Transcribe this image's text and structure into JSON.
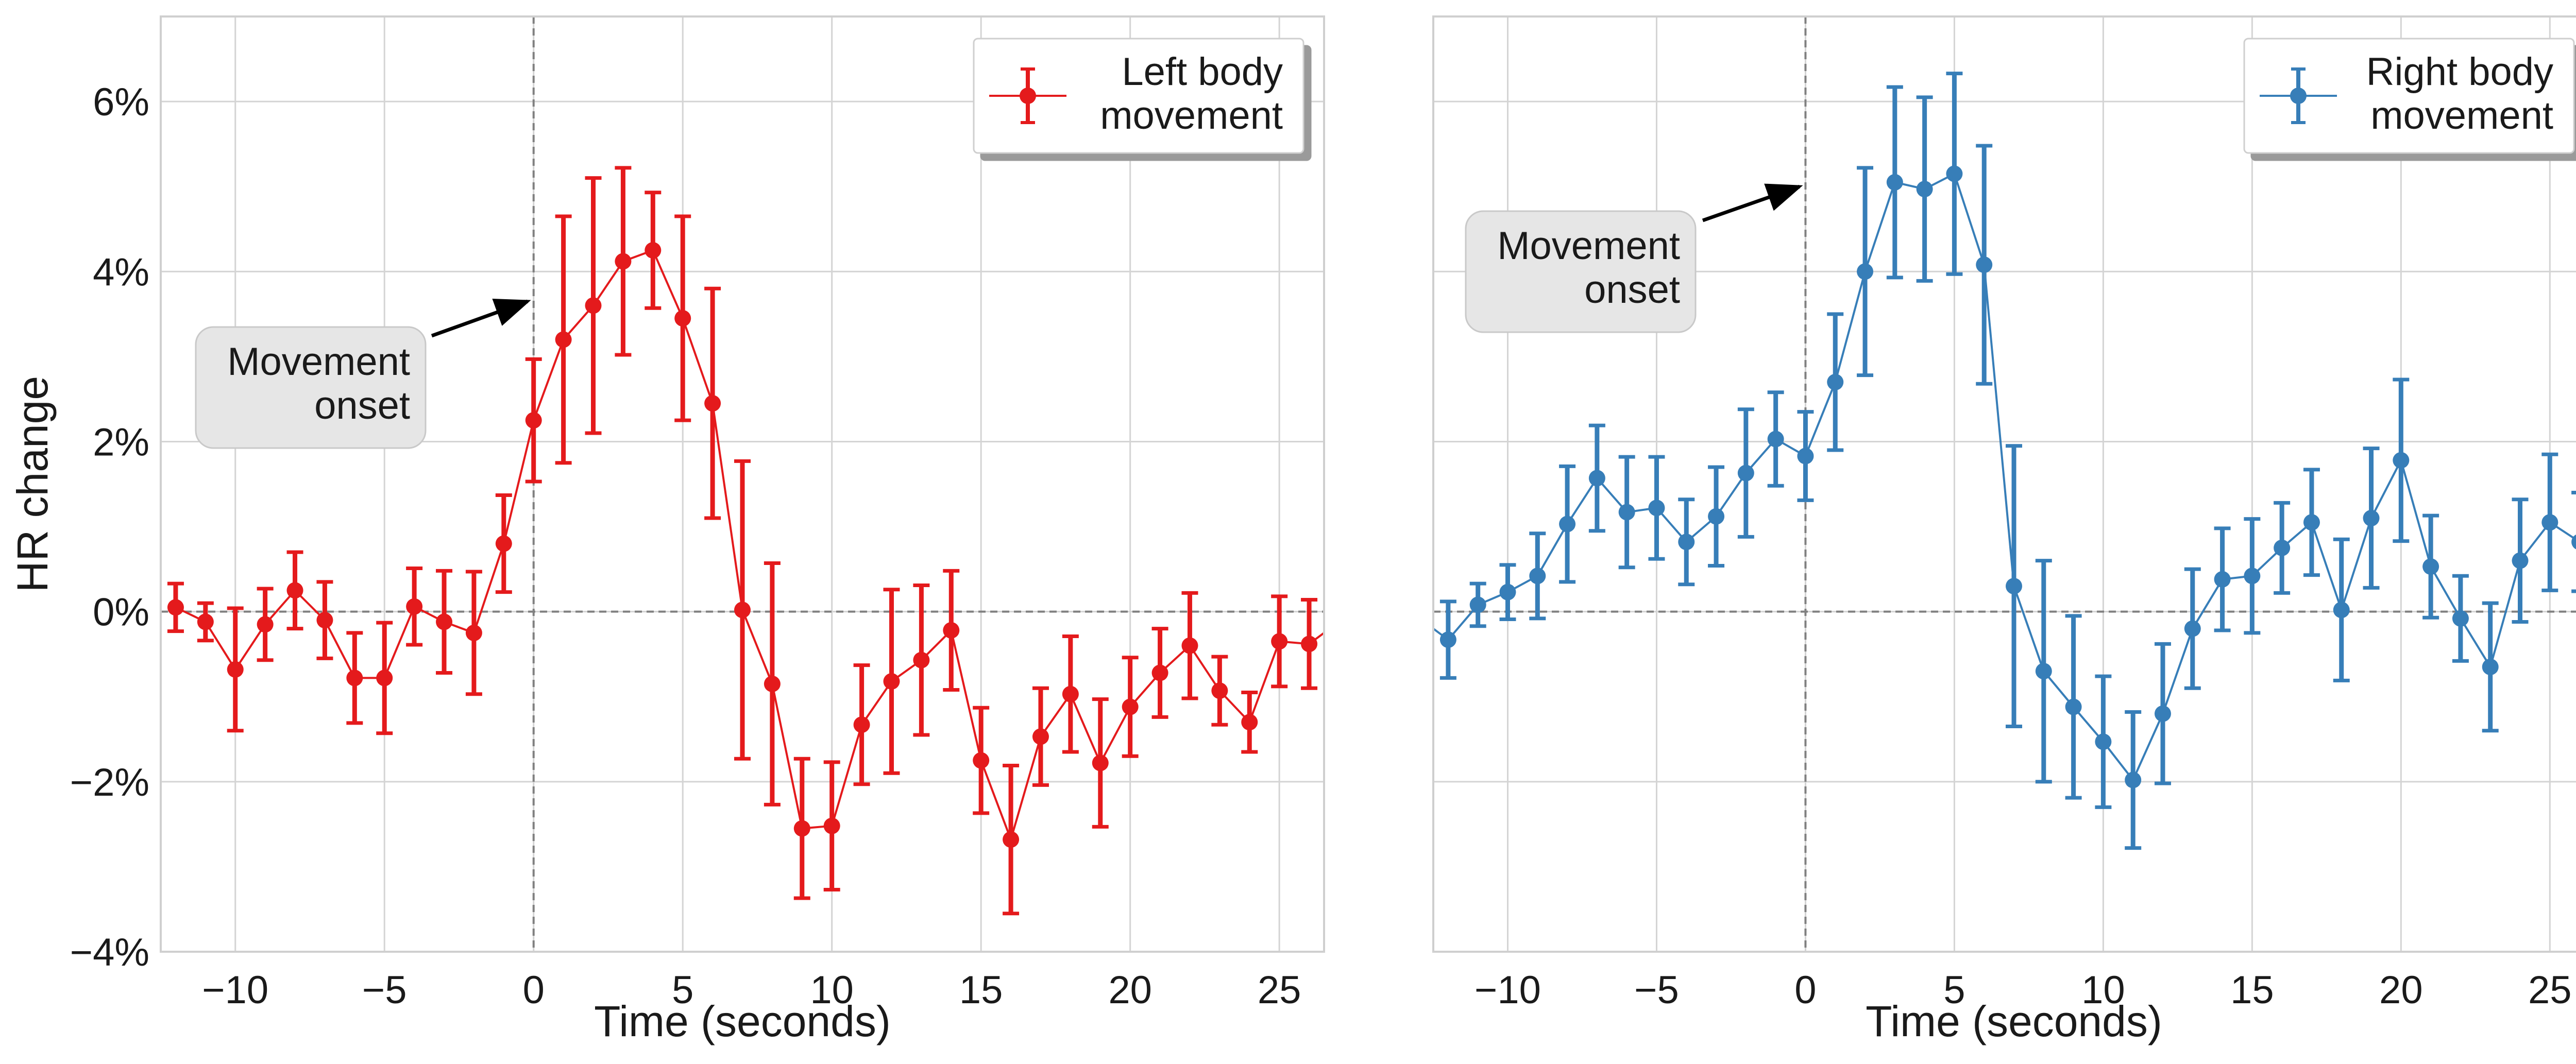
{
  "chart_data": [
    {
      "type": "line",
      "xlabel": "Time (seconds)",
      "ylabel": "HR change",
      "xlim": [
        -12.5,
        26.5
      ],
      "ylim": [
        -4,
        7
      ],
      "xticks": [
        -10,
        -5,
        0,
        5,
        10,
        15,
        20,
        25
      ],
      "xtick_labels": [
        "−10",
        "−5",
        "0",
        "5",
        "10",
        "15",
        "20",
        "25"
      ],
      "yticks": [
        -4,
        -2,
        0,
        2,
        4,
        6
      ],
      "ytick_labels": [
        "−4%",
        "−2%",
        "0%",
        "2%",
        "4%",
        "6%"
      ],
      "grid": true,
      "reference_lines": {
        "vertical_x": 0,
        "horizontal_y": 0
      },
      "legend_position": "top-right",
      "annotation": {
        "text": [
          "Movement",
          "onset"
        ],
        "arrow_to": [
          -0.2,
          3.65
        ]
      },
      "series": [
        {
          "name": "Left body movement",
          "legend_lines": [
            "Left body",
            "movement"
          ],
          "color": "#e41a1c",
          "x": [
            -12,
            -11,
            -10,
            -9,
            -8,
            -7,
            -6,
            -5,
            -4,
            -3,
            -2,
            -1,
            0,
            1,
            2,
            3,
            4,
            5,
            6,
            7,
            8,
            9,
            10,
            11,
            12,
            13,
            14,
            15,
            16,
            17,
            18,
            19,
            20,
            21,
            22,
            23,
            24,
            25,
            26
          ],
          "y": [
            0.05,
            -0.12,
            -0.68,
            -0.15,
            0.25,
            -0.1,
            -0.78,
            -0.78,
            0.06,
            -0.12,
            -0.25,
            0.8,
            2.25,
            3.2,
            3.6,
            4.12,
            4.25,
            3.45,
            2.45,
            0.02,
            -0.85,
            -2.55,
            -2.52,
            -1.33,
            -0.82,
            -0.57,
            -0.22,
            -1.75,
            -2.68,
            -1.47,
            -0.97,
            -1.78,
            -1.12,
            -0.72,
            -0.4,
            -0.93,
            -1.3,
            -0.35,
            -0.38
          ],
          "error": [
            0.28,
            0.22,
            0.72,
            0.42,
            0.45,
            0.45,
            0.53,
            0.65,
            0.45,
            0.6,
            0.72,
            0.57,
            0.72,
            1.45,
            1.5,
            1.1,
            0.68,
            1.2,
            1.35,
            1.75,
            1.42,
            0.82,
            0.75,
            0.7,
            1.08,
            0.88,
            0.7,
            0.62,
            0.87,
            0.57,
            0.68,
            0.75,
            0.58,
            0.52,
            0.62,
            0.4,
            0.35,
            0.53,
            0.52
          ],
          "tail": {
            "x": 26.5,
            "y": -0.25
          }
        }
      ]
    },
    {
      "type": "line",
      "xlabel": "Time (seconds)",
      "ylabel": "",
      "xlim": [
        -12.5,
        26.5
      ],
      "ylim": [
        -4,
        7
      ],
      "xticks": [
        -10,
        -5,
        0,
        5,
        10,
        15,
        20,
        25
      ],
      "xtick_labels": [
        "−10",
        "−5",
        "0",
        "5",
        "10",
        "15",
        "20",
        "25"
      ],
      "yticks": [
        -4,
        -2,
        0,
        2,
        4,
        6
      ],
      "grid": true,
      "reference_lines": {
        "vertical_x": 0,
        "horizontal_y": 0
      },
      "legend_position": "top-right",
      "annotation": {
        "text": [
          "Movement",
          "onset"
        ],
        "arrow_to": [
          -0.2,
          5.0
        ]
      },
      "series": [
        {
          "name": "Right body movement",
          "legend_lines": [
            "Right body",
            "movement"
          ],
          "color": "#377eb8",
          "x": [
            -12,
            -11,
            -10,
            -9,
            -8,
            -7,
            -6,
            -5,
            -4,
            -3,
            -2,
            -1,
            0,
            1,
            2,
            3,
            4,
            5,
            6,
            7,
            8,
            9,
            10,
            11,
            12,
            13,
            14,
            15,
            16,
            17,
            18,
            19,
            20,
            21,
            22,
            23,
            24,
            25,
            26
          ],
          "y": [
            -0.33,
            0.08,
            0.23,
            0.42,
            1.03,
            1.57,
            1.17,
            1.22,
            0.82,
            1.12,
            1.63,
            2.03,
            1.83,
            2.7,
            4.0,
            5.05,
            4.97,
            5.15,
            4.08,
            0.3,
            -0.7,
            -1.12,
            -1.53,
            -1.98,
            -1.2,
            -0.2,
            0.38,
            0.42,
            0.75,
            1.05,
            0.02,
            1.1,
            1.78,
            0.53,
            -0.08,
            -0.65,
            0.6,
            1.05,
            0.82
          ],
          "error": [
            0.45,
            0.25,
            0.32,
            0.5,
            0.68,
            0.62,
            0.65,
            0.6,
            0.5,
            0.58,
            0.75,
            0.55,
            0.52,
            0.8,
            1.22,
            1.12,
            1.08,
            1.18,
            1.4,
            1.65,
            1.3,
            1.07,
            0.77,
            0.8,
            0.82,
            0.7,
            0.6,
            0.67,
            0.53,
            0.62,
            0.83,
            0.82,
            0.95,
            0.6,
            0.5,
            0.75,
            0.72,
            0.8,
            0.58
          ],
          "head": {
            "x": -12.5,
            "y": -0.2
          }
        }
      ]
    }
  ]
}
